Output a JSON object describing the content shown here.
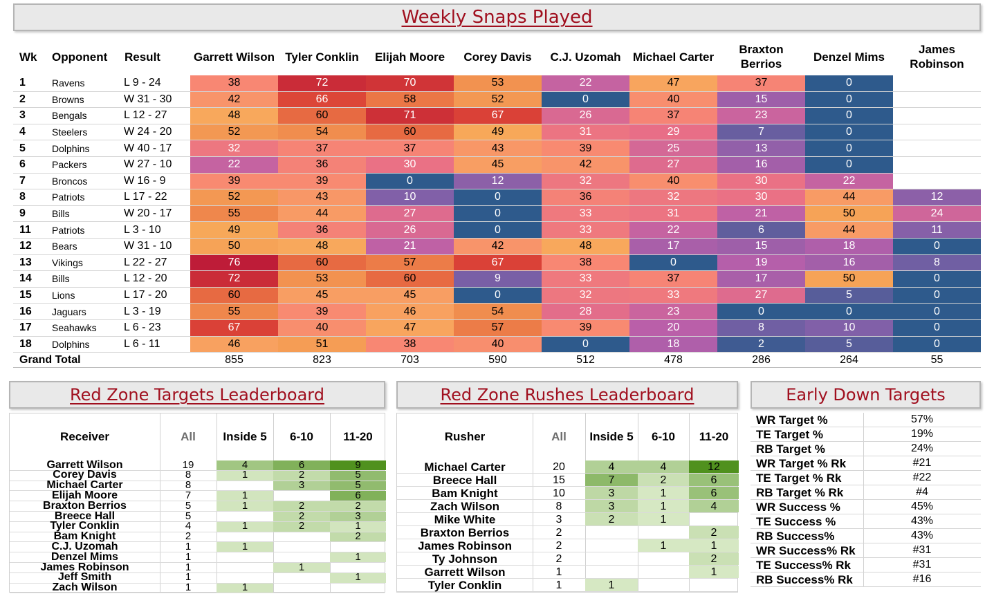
{
  "snaps": {
    "title": "Weekly Snaps Played",
    "headers": [
      "Wk",
      "Opponent",
      "Result",
      "Garrett Wilson",
      "Tyler Conklin",
      "Elijah Moore",
      "Corey Davis",
      "C.J. Uzomah",
      "Michael Carter",
      "Braxton Berrios",
      "Denzel Mims",
      "James Robinson"
    ],
    "rows": [
      {
        "wk": "1",
        "opp": "Ravens",
        "res": "L 9 - 24",
        "v": [
          "38",
          "72",
          "70",
          "53",
          "22",
          "47",
          "37",
          "0",
          ""
        ]
      },
      {
        "wk": "2",
        "opp": "Browns",
        "res": "W 31 - 30",
        "v": [
          "42",
          "66",
          "58",
          "52",
          "0",
          "40",
          "15",
          "0",
          ""
        ]
      },
      {
        "wk": "3",
        "opp": "Bengals",
        "res": "L 12 - 27",
        "v": [
          "48",
          "60",
          "71",
          "67",
          "26",
          "37",
          "23",
          "0",
          ""
        ]
      },
      {
        "wk": "4",
        "opp": "Steelers",
        "res": "W 24 - 20",
        "v": [
          "52",
          "54",
          "60",
          "49",
          "31",
          "29",
          "7",
          "0",
          ""
        ]
      },
      {
        "wk": "5",
        "opp": "Dolphins",
        "res": "W 40 - 17",
        "v": [
          "32",
          "37",
          "37",
          "43",
          "39",
          "25",
          "13",
          "0",
          ""
        ]
      },
      {
        "wk": "6",
        "opp": "Packers",
        "res": "W 27 - 10",
        "v": [
          "22",
          "36",
          "30",
          "45",
          "42",
          "27",
          "16",
          "0",
          ""
        ]
      },
      {
        "wk": "7",
        "opp": "Broncos",
        "res": "W 16 - 9",
        "v": [
          "39",
          "39",
          "0",
          "12",
          "32",
          "40",
          "30",
          "22",
          ""
        ]
      },
      {
        "wk": "8",
        "opp": "Patriots",
        "res": "L 17 - 22",
        "v": [
          "52",
          "43",
          "10",
          "0",
          "36",
          "32",
          "30",
          "44",
          "12"
        ]
      },
      {
        "wk": "9",
        "opp": "Bills",
        "res": "W 20 - 17",
        "v": [
          "55",
          "44",
          "27",
          "0",
          "33",
          "31",
          "21",
          "50",
          "24"
        ]
      },
      {
        "wk": "11",
        "opp": "Patriots",
        "res": "L 3 - 10",
        "v": [
          "49",
          "36",
          "26",
          "0",
          "33",
          "22",
          "6",
          "44",
          "11"
        ]
      },
      {
        "wk": "12",
        "opp": "Bears",
        "res": "W 31 - 10",
        "v": [
          "50",
          "48",
          "21",
          "42",
          "48",
          "17",
          "15",
          "18",
          "0"
        ]
      },
      {
        "wk": "13",
        "opp": "Vikings",
        "res": "L 22 - 27",
        "v": [
          "76",
          "60",
          "57",
          "67",
          "38",
          "0",
          "19",
          "16",
          "8"
        ]
      },
      {
        "wk": "14",
        "opp": "Bills",
        "res": "L 12 - 20",
        "v": [
          "72",
          "53",
          "60",
          "9",
          "33",
          "37",
          "17",
          "50",
          "0"
        ]
      },
      {
        "wk": "15",
        "opp": "Lions",
        "res": "L 17 - 20",
        "v": [
          "60",
          "45",
          "45",
          "0",
          "32",
          "33",
          "27",
          "5",
          "0"
        ]
      },
      {
        "wk": "16",
        "opp": "Jaguars",
        "res": "L 3 - 19",
        "v": [
          "55",
          "39",
          "46",
          "54",
          "28",
          "23",
          "0",
          "0",
          "0"
        ]
      },
      {
        "wk": "17",
        "opp": "Seahawks",
        "res": "L 6 - 23",
        "v": [
          "67",
          "40",
          "47",
          "57",
          "39",
          "20",
          "8",
          "10",
          "0"
        ]
      },
      {
        "wk": "18",
        "opp": "Dolphins",
        "res": "L 6 - 11",
        "v": [
          "46",
          "51",
          "38",
          "40",
          "0",
          "18",
          "2",
          "5",
          "0"
        ]
      }
    ],
    "grand_total_label": "Grand Total",
    "grand_totals": [
      "855",
      "823",
      "703",
      "590",
      "512",
      "478",
      "286",
      "264",
      "55"
    ]
  },
  "red_zone_targets": {
    "title": "Red Zone Targets Leaderboard",
    "headers": [
      "Receiver",
      "All",
      "Inside 5",
      "6-10",
      "11-20"
    ],
    "rows": [
      {
        "name": "Garrett Wilson",
        "all": "19",
        "i5": "4",
        "r610": "6",
        "r1120": "9"
      },
      {
        "name": "Corey Davis",
        "all": "8",
        "i5": "1",
        "r610": "2",
        "r1120": "5"
      },
      {
        "name": "Michael Carter",
        "all": "8",
        "i5": "",
        "r610": "3",
        "r1120": "5"
      },
      {
        "name": "Elijah Moore",
        "all": "7",
        "i5": "1",
        "r610": "",
        "r1120": "6"
      },
      {
        "name": "Braxton Berrios",
        "all": "5",
        "i5": "1",
        "r610": "2",
        "r1120": "2"
      },
      {
        "name": "Breece Hall",
        "all": "5",
        "i5": "",
        "r610": "2",
        "r1120": "3"
      },
      {
        "name": "Tyler Conklin",
        "all": "4",
        "i5": "1",
        "r610": "2",
        "r1120": "1"
      },
      {
        "name": "Bam Knight",
        "all": "2",
        "i5": "",
        "r610": "",
        "r1120": "2"
      },
      {
        "name": "C.J. Uzomah",
        "all": "1",
        "i5": "1",
        "r610": "",
        "r1120": ""
      },
      {
        "name": "Denzel Mims",
        "all": "1",
        "i5": "",
        "r610": "",
        "r1120": "1"
      },
      {
        "name": "James Robinson",
        "all": "1",
        "i5": "",
        "r610": "1",
        "r1120": ""
      },
      {
        "name": "Jeff Smith",
        "all": "1",
        "i5": "",
        "r610": "",
        "r1120": "1"
      },
      {
        "name": "Zach Wilson",
        "all": "1",
        "i5": "1",
        "r610": "",
        "r1120": ""
      }
    ]
  },
  "red_zone_rushes": {
    "title": "Red Zone Rushes Leaderboard",
    "headers": [
      "Rusher",
      "All",
      "Inside 5",
      "6-10",
      "11-20"
    ],
    "rows": [
      {
        "name": "Michael Carter",
        "all": "20",
        "i5": "4",
        "r610": "4",
        "r1120": "12"
      },
      {
        "name": "Breece Hall",
        "all": "15",
        "i5": "7",
        "r610": "2",
        "r1120": "6"
      },
      {
        "name": "Bam Knight",
        "all": "10",
        "i5": "3",
        "r610": "1",
        "r1120": "6"
      },
      {
        "name": "Zach Wilson",
        "all": "8",
        "i5": "3",
        "r610": "1",
        "r1120": "4"
      },
      {
        "name": "Mike White",
        "all": "3",
        "i5": "2",
        "r610": "1",
        "r1120": ""
      },
      {
        "name": "Braxton Berrios",
        "all": "2",
        "i5": "",
        "r610": "",
        "r1120": "2"
      },
      {
        "name": "James Robinson",
        "all": "2",
        "i5": "",
        "r610": "1",
        "r1120": "1"
      },
      {
        "name": "Ty Johnson",
        "all": "2",
        "i5": "",
        "r610": "",
        "r1120": "2"
      },
      {
        "name": "Garrett Wilson",
        "all": "1",
        "i5": "",
        "r610": "",
        "r1120": "1"
      },
      {
        "name": "Tyler Conklin",
        "all": "1",
        "i5": "1",
        "r610": "",
        "r1120": ""
      }
    ]
  },
  "early_down_targets": {
    "title": "Early Down Targets",
    "rows": [
      {
        "k": "WR Target %",
        "v": "57%"
      },
      {
        "k": "TE Target %",
        "v": "19%"
      },
      {
        "k": "RB Target %",
        "v": "24%"
      },
      {
        "k": "WR Target % Rk",
        "v": "#21"
      },
      {
        "k": "TE Target % Rk",
        "v": "#22"
      },
      {
        "k": "RB Target % Rk",
        "v": "#4"
      },
      {
        "k": "WR Success %",
        "v": "45%"
      },
      {
        "k": "TE Success %",
        "v": "43%"
      },
      {
        "k": "RB Success%",
        "v": "43%"
      },
      {
        "k": "WR Success% Rk",
        "v": "#31"
      },
      {
        "k": "TE Success% Rk",
        "v": "#31"
      },
      {
        "k": "RB Success% Rk",
        "v": "#16"
      }
    ]
  },
  "colors": {
    "heat_low": "#2e5a8c",
    "heat_high": "#c21e38",
    "title_red": "#a00f1e",
    "green_high": "#4f8f1f",
    "green_low": "#e3f0d3"
  }
}
